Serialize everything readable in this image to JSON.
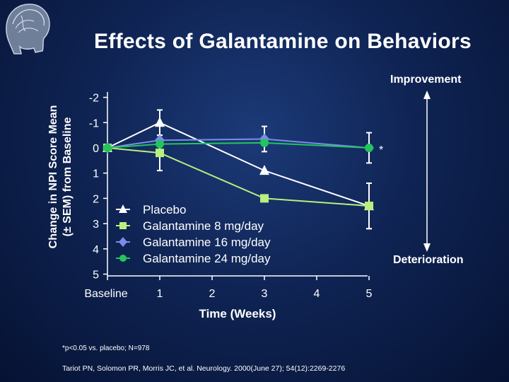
{
  "page": {
    "title": "Effects of Galantamine on Behaviors",
    "improvement_label": "Improvement",
    "deterioration_label": "Deterioration",
    "ylabel_line1": "Change in NPI Score Mean",
    "ylabel_line2": "(± SEM) from Baseline",
    "footnote": "*p<0.05 vs. placebo; N=978",
    "citation": "Tariot PN, Solomon PR, Morris JC, et al. Neurology. 2000(June 27); 54(12):2269-2276"
  },
  "chart_data": {
    "type": "line",
    "title": "Effects of Galantamine on Behaviors",
    "xlabel": "Time (Weeks)",
    "ylabel": "Change in NPI Score Mean (± SEM) from Baseline",
    "x_ticks": [
      "Baseline",
      "1",
      "2",
      "3",
      "4",
      "5"
    ],
    "x_tick_values": [
      0,
      1,
      2,
      3,
      4,
      5
    ],
    "y_ticks": [
      "-2",
      "-1",
      "0",
      "1",
      "2",
      "3",
      "4",
      "5"
    ],
    "y_tick_values": [
      -2,
      -1,
      0,
      1,
      2,
      3,
      4,
      5
    ],
    "ylim": [
      -2,
      5
    ],
    "y_inverted": true,
    "legend_position": "center",
    "annotation": "*",
    "series": [
      {
        "name": "Placebo",
        "color": "#ffffff",
        "marker": "triangle",
        "x": [
          0,
          1,
          3,
          5
        ],
        "y": [
          0,
          -1.0,
          0.9,
          2.3
        ],
        "err": [
          0,
          0.5,
          0,
          0.9
        ]
      },
      {
        "name": "Galantamine 8 mg/day",
        "color": "#b9ef7e",
        "marker": "square",
        "x": [
          0,
          1,
          3,
          5
        ],
        "y": [
          0,
          0.2,
          2.0,
          2.3
        ],
        "err": [
          0,
          0.7,
          0,
          0.9
        ]
      },
      {
        "name": "Galantamine 16 mg/day",
        "color": "#7b8ce8",
        "marker": "diamond",
        "x": [
          0,
          1,
          3,
          5
        ],
        "y": [
          0,
          -0.3,
          -0.35,
          0
        ],
        "err": [
          0,
          0,
          0.5,
          0
        ]
      },
      {
        "name": "Galantamine 24 mg/day",
        "color": "#22c55e",
        "marker": "circle",
        "x": [
          0,
          1,
          3,
          5
        ],
        "y": [
          0,
          -0.15,
          -0.2,
          0
        ],
        "err": [
          0,
          0,
          0,
          0.6
        ]
      }
    ]
  }
}
